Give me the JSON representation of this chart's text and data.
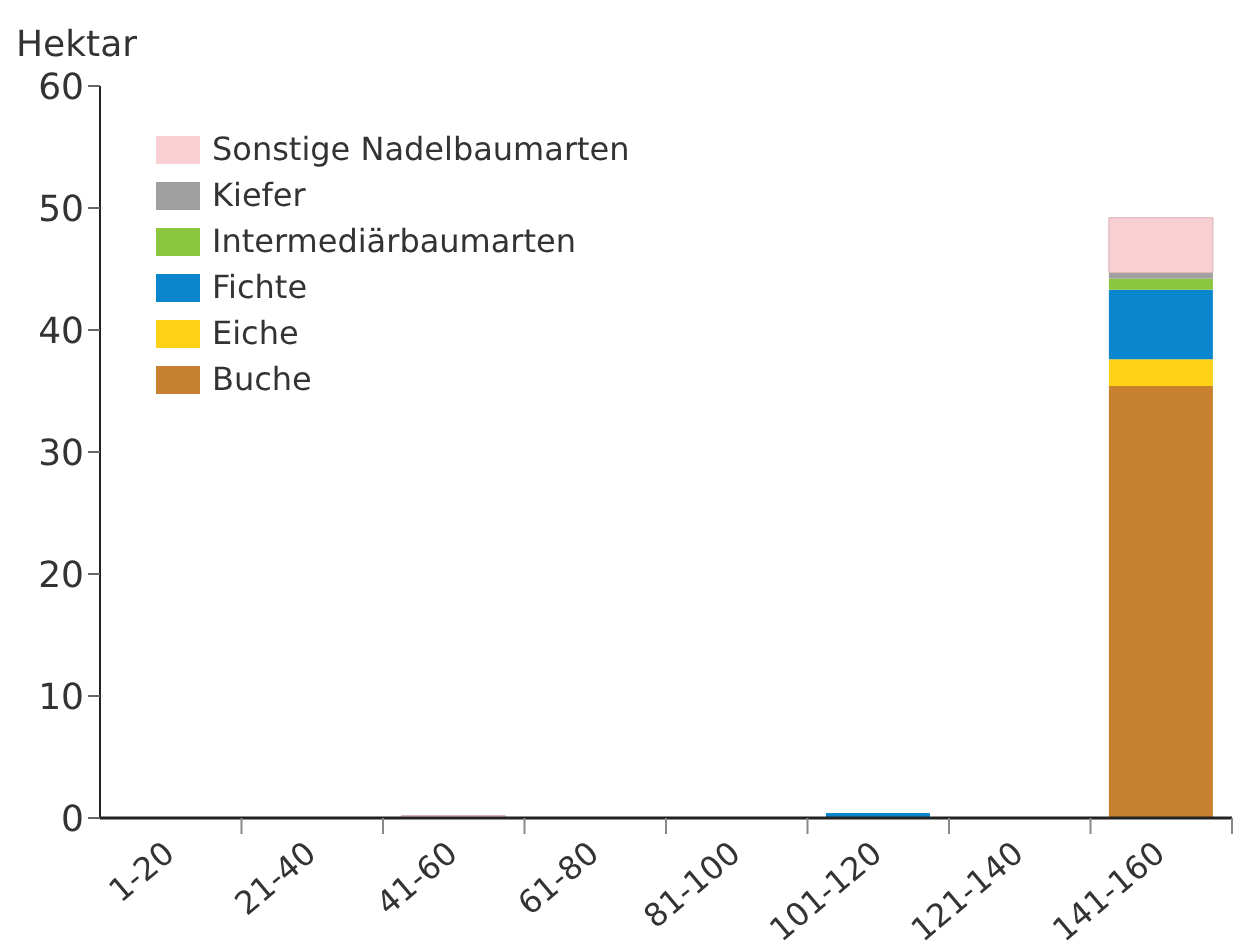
{
  "chart_data": {
    "type": "bar",
    "stacked": true,
    "ylabel": "Hektar",
    "categories": [
      "1-20",
      "21-40",
      "41-60",
      "61-80",
      "81-100",
      "101-120",
      "121-140",
      "141-160"
    ],
    "series": [
      {
        "name": "Buche",
        "color": "#c8812e",
        "values": [
          0,
          0,
          0,
          0,
          0,
          0,
          0,
          35.4
        ]
      },
      {
        "name": "Eiche",
        "color": "#fcd116",
        "values": [
          0,
          0,
          0,
          0,
          0,
          0,
          0,
          2.2
        ]
      },
      {
        "name": "Fichte",
        "color": "#0a86cf",
        "values": [
          0,
          0,
          0,
          0,
          0,
          0.4,
          0,
          5.7
        ]
      },
      {
        "name": "Intermediärbaumarten",
        "color": "#8cc63f",
        "values": [
          0,
          0,
          0,
          0,
          0,
          0,
          0,
          0.9
        ]
      },
      {
        "name": "Kiefer",
        "color": "#a0a0a0",
        "values": [
          0,
          0,
          0,
          0,
          0,
          0,
          0,
          0.5
        ]
      },
      {
        "name": "Sonstige Nadelbaumarten",
        "color": "#f8d0d4",
        "values": [
          0,
          0,
          0.2,
          0,
          0,
          0,
          0,
          4.5
        ]
      }
    ],
    "ylim": [
      0,
      60
    ],
    "yticks": [
      0,
      10,
      20,
      30,
      40,
      50,
      60
    ],
    "grid": false,
    "legend": "top left"
  }
}
